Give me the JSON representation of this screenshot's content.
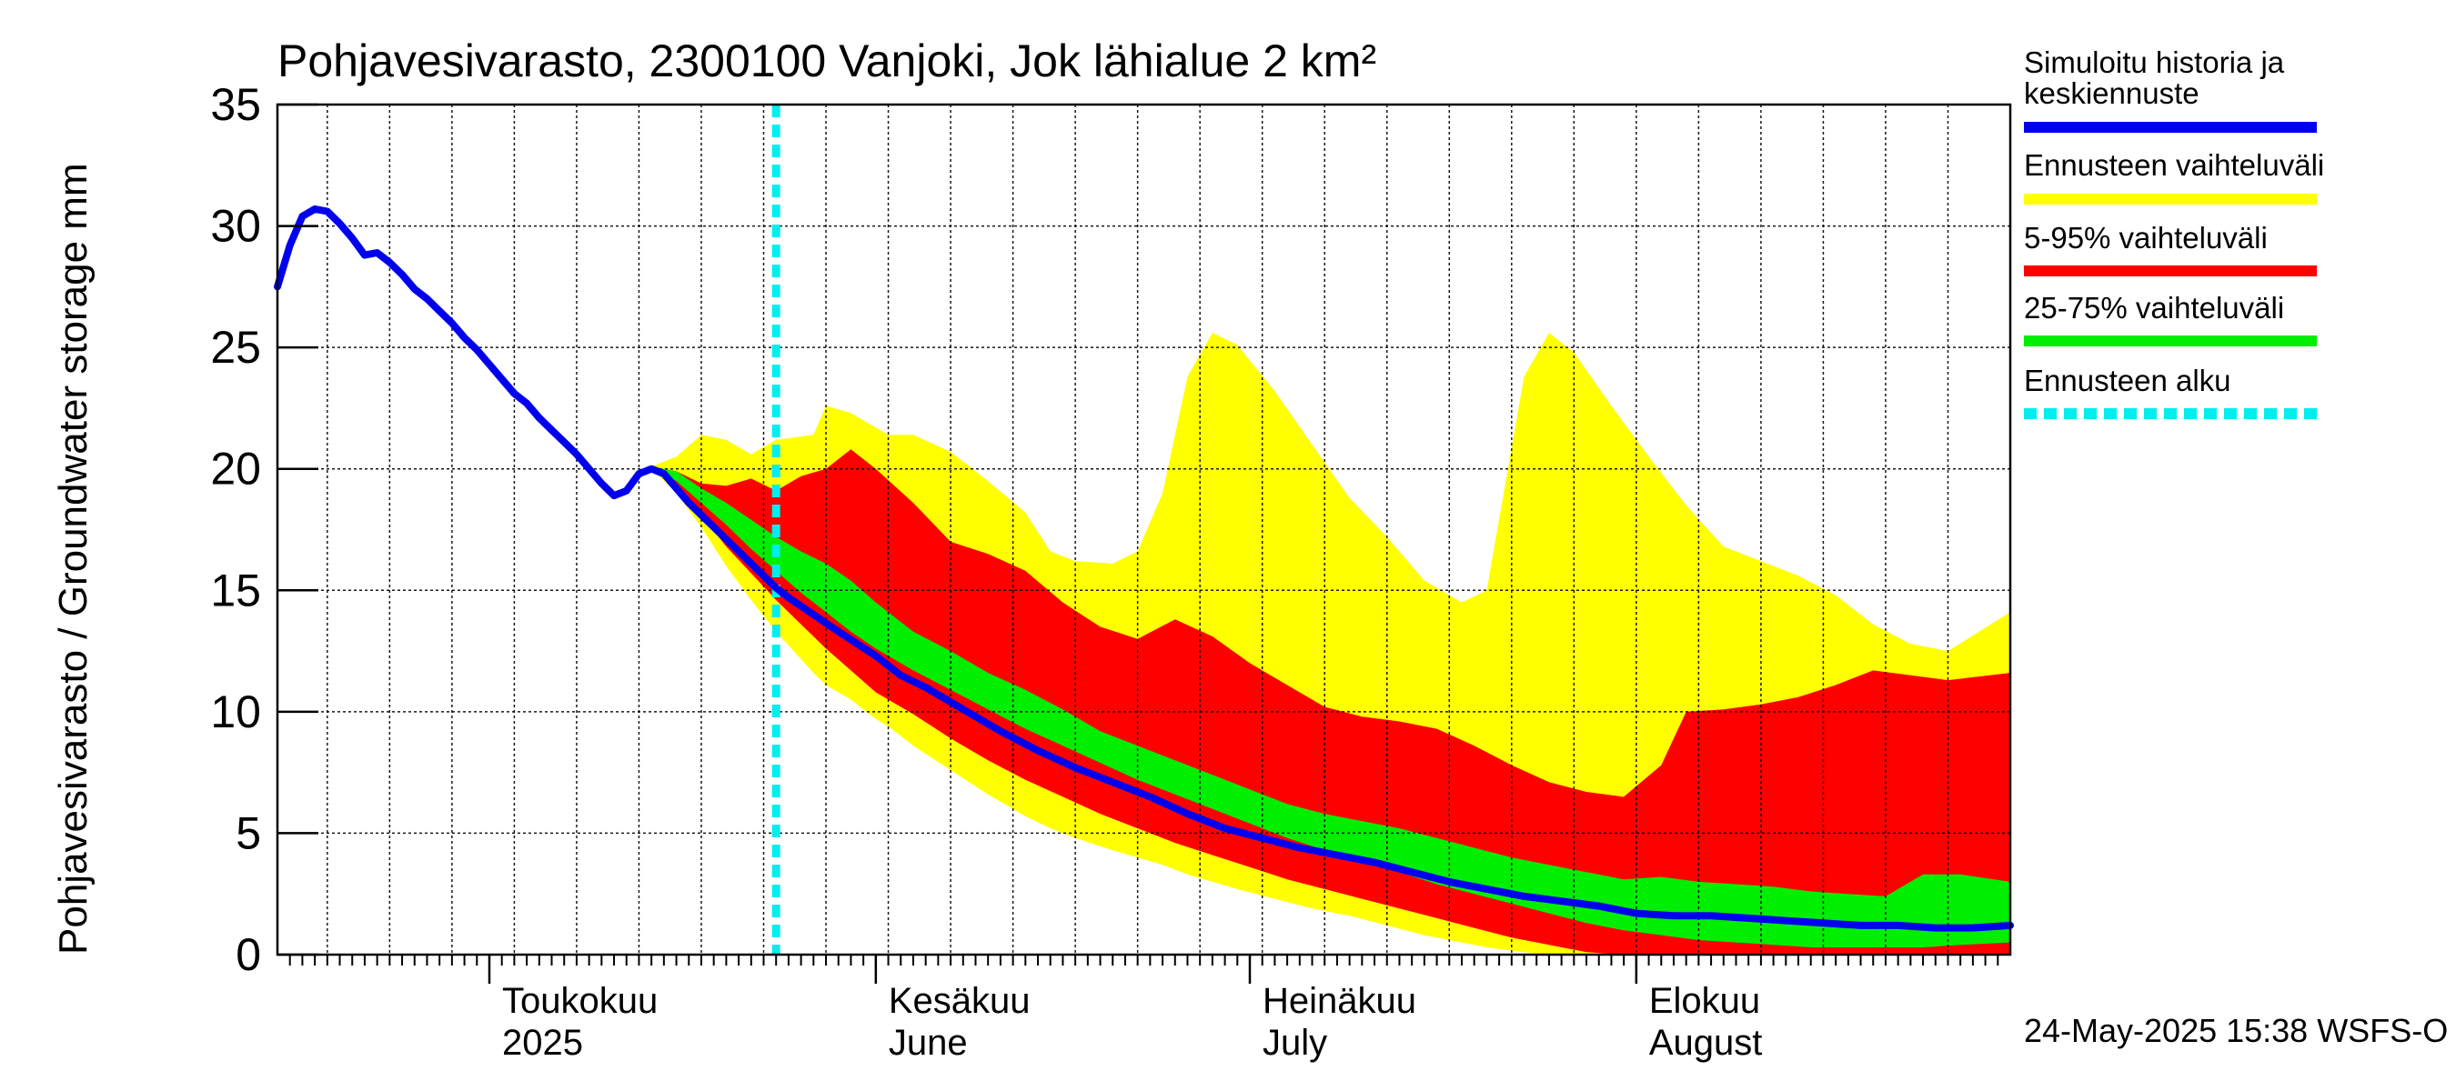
{
  "chart_data": {
    "type": "area",
    "title": "Pohjavesivarasto, 2300100 Vanjoki, Jok lähialue 2 km²",
    "ylabel": "Pohjavesivarasto / Groundwater storage   mm",
    "ylim": [
      0,
      35
    ],
    "yticks": [
      0,
      5,
      10,
      15,
      20,
      25,
      30,
      35
    ],
    "grid": true,
    "legend_position": "right",
    "x_start": "2025-04-14",
    "x_end": "2025-08-31",
    "forecast_start": "2025-05-24",
    "month_labels": [
      {
        "date": "2025-05-01",
        "line1": "Toukokuu",
        "line2": "2025"
      },
      {
        "date": "2025-06-01",
        "line1": "Kesäkuu",
        "line2": "June"
      },
      {
        "date": "2025-07-01",
        "line1": "Heinäkuu",
        "line2": "July"
      },
      {
        "date": "2025-08-01",
        "line1": "Elokuu",
        "line2": "August"
      }
    ],
    "legend": [
      {
        "label": "Simuloitu historia ja keskiennuste",
        "color": "#0000ee",
        "style": "solid"
      },
      {
        "label": "Ennusteen vaihteluväli",
        "color": "#ffff00",
        "style": "solid"
      },
      {
        "label": "5-95% vaihteluväli",
        "color": "#ff0000",
        "style": "solid"
      },
      {
        "label": "25-75% vaihteluväli",
        "color": "#00ee00",
        "style": "solid"
      },
      {
        "label": "Ennusteen alku",
        "color": "#00eeee",
        "style": "dashed"
      }
    ],
    "series": [
      {
        "name": "Simuloitu historia ja keskiennuste",
        "points": [
          [
            "2025-04-14",
            27.5
          ],
          [
            "2025-04-15",
            29.2
          ],
          [
            "2025-04-16",
            30.4
          ],
          [
            "2025-04-17",
            30.7
          ],
          [
            "2025-04-18",
            30.6
          ],
          [
            "2025-04-19",
            30.1
          ],
          [
            "2025-04-20",
            29.5
          ],
          [
            "2025-04-21",
            28.8
          ],
          [
            "2025-04-22",
            28.9
          ],
          [
            "2025-04-23",
            28.5
          ],
          [
            "2025-04-24",
            28.0
          ],
          [
            "2025-04-25",
            27.4
          ],
          [
            "2025-04-26",
            27.0
          ],
          [
            "2025-04-27",
            26.5
          ],
          [
            "2025-04-28",
            26.0
          ],
          [
            "2025-04-29",
            25.4
          ],
          [
            "2025-04-30",
            24.9
          ],
          [
            "2025-05-01",
            24.3
          ],
          [
            "2025-05-02",
            23.7
          ],
          [
            "2025-05-03",
            23.1
          ],
          [
            "2025-05-04",
            22.7
          ],
          [
            "2025-05-05",
            22.1
          ],
          [
            "2025-05-06",
            21.6
          ],
          [
            "2025-05-07",
            21.1
          ],
          [
            "2025-05-08",
            20.6
          ],
          [
            "2025-05-09",
            20.0
          ],
          [
            "2025-05-10",
            19.4
          ],
          [
            "2025-05-11",
            18.9
          ],
          [
            "2025-05-12",
            19.1
          ],
          [
            "2025-05-13",
            19.8
          ],
          [
            "2025-05-14",
            20.0
          ],
          [
            "2025-05-15",
            19.8
          ],
          [
            "2025-05-16",
            19.2
          ],
          [
            "2025-05-17",
            18.6
          ],
          [
            "2025-05-18",
            18.1
          ],
          [
            "2025-05-19",
            17.6
          ],
          [
            "2025-05-20",
            17.1
          ],
          [
            "2025-05-21",
            16.6
          ],
          [
            "2025-05-22",
            16.1
          ],
          [
            "2025-05-23",
            15.6
          ],
          [
            "2025-05-24",
            15.1
          ],
          [
            "2025-05-25",
            14.7
          ],
          [
            "2025-05-27",
            14.0
          ],
          [
            "2025-05-29",
            13.3
          ],
          [
            "2025-06-01",
            12.3
          ],
          [
            "2025-06-03",
            11.5
          ],
          [
            "2025-06-05",
            11.0
          ],
          [
            "2025-06-08",
            10.1
          ],
          [
            "2025-06-11",
            9.2
          ],
          [
            "2025-06-14",
            8.4
          ],
          [
            "2025-06-17",
            7.7
          ],
          [
            "2025-06-20",
            7.1
          ],
          [
            "2025-06-23",
            6.5
          ],
          [
            "2025-06-26",
            5.8
          ],
          [
            "2025-06-29",
            5.2
          ],
          [
            "2025-07-02",
            4.8
          ],
          [
            "2025-07-05",
            4.4
          ],
          [
            "2025-07-08",
            4.1
          ],
          [
            "2025-07-11",
            3.8
          ],
          [
            "2025-07-14",
            3.4
          ],
          [
            "2025-07-17",
            3.0
          ],
          [
            "2025-07-20",
            2.7
          ],
          [
            "2025-07-23",
            2.4
          ],
          [
            "2025-07-26",
            2.2
          ],
          [
            "2025-07-29",
            2.0
          ],
          [
            "2025-08-01",
            1.7
          ],
          [
            "2025-08-04",
            1.6
          ],
          [
            "2025-08-07",
            1.6
          ],
          [
            "2025-08-10",
            1.5
          ],
          [
            "2025-08-13",
            1.4
          ],
          [
            "2025-08-16",
            1.3
          ],
          [
            "2025-08-19",
            1.2
          ],
          [
            "2025-08-22",
            1.2
          ],
          [
            "2025-08-25",
            1.1
          ],
          [
            "2025-08-28",
            1.1
          ],
          [
            "2025-08-31",
            1.2
          ]
        ]
      },
      {
        "name": "Ennusteen vaihteluväli",
        "lower_upper": [
          [
            "2025-05-14",
            20.0,
            20.1
          ],
          [
            "2025-05-16",
            19.0,
            20.5
          ],
          [
            "2025-05-18",
            17.6,
            21.4
          ],
          [
            "2025-05-20",
            16.0,
            21.2
          ],
          [
            "2025-05-22",
            14.6,
            20.6
          ],
          [
            "2025-05-24",
            13.3,
            21.2
          ],
          [
            "2025-05-27",
            11.6,
            21.4
          ],
          [
            "2025-05-28",
            11.1,
            22.6
          ],
          [
            "2025-05-30",
            10.5,
            22.3
          ],
          [
            "2025-06-01",
            9.7,
            21.7
          ],
          [
            "2025-06-02",
            9.4,
            21.4
          ],
          [
            "2025-06-04",
            8.6,
            21.4
          ],
          [
            "2025-06-07",
            7.6,
            20.7
          ],
          [
            "2025-06-10",
            6.6,
            19.5
          ],
          [
            "2025-06-13",
            5.7,
            18.2
          ],
          [
            "2025-06-15",
            5.2,
            16.6
          ],
          [
            "2025-06-17",
            4.8,
            16.2
          ],
          [
            "2025-06-20",
            4.3,
            16.1
          ],
          [
            "2025-06-22",
            4.0,
            16.6
          ],
          [
            "2025-06-24",
            3.7,
            19.0
          ],
          [
            "2025-06-26",
            3.3,
            23.8
          ],
          [
            "2025-06-28",
            3.0,
            25.6
          ],
          [
            "2025-06-30",
            2.7,
            25.1
          ],
          [
            "2025-07-03",
            2.3,
            23.2
          ],
          [
            "2025-07-06",
            1.9,
            21.0
          ],
          [
            "2025-07-09",
            1.6,
            18.8
          ],
          [
            "2025-07-12",
            1.2,
            17.2
          ],
          [
            "2025-07-15",
            0.8,
            15.4
          ],
          [
            "2025-07-18",
            0.5,
            14.5
          ],
          [
            "2025-07-20",
            0.3,
            15.0
          ],
          [
            "2025-07-23",
            0.1,
            23.8
          ],
          [
            "2025-07-25",
            0.0,
            25.6
          ],
          [
            "2025-07-27",
            0.0,
            24.8
          ],
          [
            "2025-07-30",
            0.0,
            22.6
          ],
          [
            "2025-08-02",
            0.0,
            20.5
          ],
          [
            "2025-08-05",
            0.0,
            18.5
          ],
          [
            "2025-08-08",
            0.0,
            16.8
          ],
          [
            "2025-08-11",
            0.0,
            16.2
          ],
          [
            "2025-08-14",
            0.0,
            15.6
          ],
          [
            "2025-08-17",
            0.0,
            14.8
          ],
          [
            "2025-08-20",
            0.0,
            13.6
          ],
          [
            "2025-08-23",
            0.0,
            12.8
          ],
          [
            "2025-08-26",
            0.0,
            12.5
          ],
          [
            "2025-08-31",
            0.0,
            14.1
          ]
        ]
      },
      {
        "name": "5-95% vaihteluväli",
        "lower_upper": [
          [
            "2025-05-14",
            20.0,
            20.1
          ],
          [
            "2025-05-16",
            19.3,
            19.9
          ],
          [
            "2025-05-18",
            18.1,
            19.4
          ],
          [
            "2025-05-20",
            16.8,
            19.3
          ],
          [
            "2025-05-22",
            15.7,
            19.6
          ],
          [
            "2025-05-24",
            14.6,
            19.1
          ],
          [
            "2025-05-26",
            13.6,
            19.7
          ],
          [
            "2025-05-28",
            12.6,
            20.0
          ],
          [
            "2025-05-30",
            11.7,
            20.8
          ],
          [
            "2025-06-01",
            10.8,
            20.0
          ],
          [
            "2025-06-04",
            9.9,
            18.6
          ],
          [
            "2025-06-07",
            8.9,
            17.0
          ],
          [
            "2025-06-10",
            8.0,
            16.5
          ],
          [
            "2025-06-13",
            7.2,
            15.8
          ],
          [
            "2025-06-16",
            6.5,
            14.5
          ],
          [
            "2025-06-19",
            5.8,
            13.5
          ],
          [
            "2025-06-22",
            5.2,
            13.0
          ],
          [
            "2025-06-25",
            4.6,
            13.8
          ],
          [
            "2025-06-28",
            4.1,
            13.1
          ],
          [
            "2025-07-01",
            3.6,
            12.0
          ],
          [
            "2025-07-04",
            3.1,
            11.1
          ],
          [
            "2025-07-07",
            2.7,
            10.2
          ],
          [
            "2025-07-10",
            2.3,
            9.8
          ],
          [
            "2025-07-13",
            1.9,
            9.6
          ],
          [
            "2025-07-16",
            1.5,
            9.3
          ],
          [
            "2025-07-19",
            1.1,
            8.6
          ],
          [
            "2025-07-22",
            0.7,
            7.8
          ],
          [
            "2025-07-25",
            0.4,
            7.1
          ],
          [
            "2025-07-28",
            0.1,
            6.7
          ],
          [
            "2025-07-31",
            0.0,
            6.5
          ],
          [
            "2025-08-03",
            0.0,
            7.8
          ],
          [
            "2025-08-05",
            0.0,
            10.0
          ],
          [
            "2025-08-08",
            0.0,
            10.1
          ],
          [
            "2025-08-11",
            0.0,
            10.3
          ],
          [
            "2025-08-14",
            0.0,
            10.6
          ],
          [
            "2025-08-17",
            0.0,
            11.1
          ],
          [
            "2025-08-20",
            0.0,
            11.7
          ],
          [
            "2025-08-23",
            0.0,
            11.5
          ],
          [
            "2025-08-26",
            0.0,
            11.3
          ],
          [
            "2025-08-31",
            0.0,
            11.6
          ]
        ]
      },
      {
        "name": "25-75% vaihteluväli",
        "lower_upper": [
          [
            "2025-05-14",
            20.0,
            20.1
          ],
          [
            "2025-05-16",
            19.5,
            19.9
          ],
          [
            "2025-05-18",
            18.6,
            19.2
          ],
          [
            "2025-05-20",
            17.7,
            18.6
          ],
          [
            "2025-05-22",
            16.7,
            17.9
          ],
          [
            "2025-05-24",
            15.8,
            17.2
          ],
          [
            "2025-05-26",
            14.9,
            16.6
          ],
          [
            "2025-05-28",
            14.1,
            16.1
          ],
          [
            "2025-05-30",
            13.3,
            15.4
          ],
          [
            "2025-06-01",
            12.6,
            14.5
          ],
          [
            "2025-06-04",
            11.7,
            13.3
          ],
          [
            "2025-06-07",
            10.9,
            12.5
          ],
          [
            "2025-06-10",
            10.1,
            11.6
          ],
          [
            "2025-06-13",
            9.3,
            10.9
          ],
          [
            "2025-06-16",
            8.6,
            10.1
          ],
          [
            "2025-06-19",
            7.9,
            9.2
          ],
          [
            "2025-06-22",
            7.2,
            8.6
          ],
          [
            "2025-06-25",
            6.6,
            8.0
          ],
          [
            "2025-06-28",
            6.0,
            7.4
          ],
          [
            "2025-07-01",
            5.4,
            6.8
          ],
          [
            "2025-07-04",
            4.8,
            6.2
          ],
          [
            "2025-07-07",
            4.3,
            5.8
          ],
          [
            "2025-07-10",
            3.8,
            5.5
          ],
          [
            "2025-07-13",
            3.4,
            5.2
          ],
          [
            "2025-07-16",
            2.9,
            4.8
          ],
          [
            "2025-07-19",
            2.5,
            4.4
          ],
          [
            "2025-07-22",
            2.1,
            4.0
          ],
          [
            "2025-07-25",
            1.7,
            3.7
          ],
          [
            "2025-07-28",
            1.3,
            3.4
          ],
          [
            "2025-07-31",
            1.0,
            3.1
          ],
          [
            "2025-08-03",
            0.8,
            3.2
          ],
          [
            "2025-08-06",
            0.6,
            3.0
          ],
          [
            "2025-08-09",
            0.5,
            2.9
          ],
          [
            "2025-08-12",
            0.4,
            2.8
          ],
          [
            "2025-08-15",
            0.3,
            2.6
          ],
          [
            "2025-08-18",
            0.3,
            2.5
          ],
          [
            "2025-08-21",
            0.3,
            2.4
          ],
          [
            "2025-08-24",
            0.3,
            3.3
          ],
          [
            "2025-08-27",
            0.4,
            3.3
          ],
          [
            "2025-08-31",
            0.5,
            3.0
          ]
        ]
      }
    ]
  },
  "footer": {
    "timestamp": "24-May-2025 15:38 WSFS-O"
  }
}
